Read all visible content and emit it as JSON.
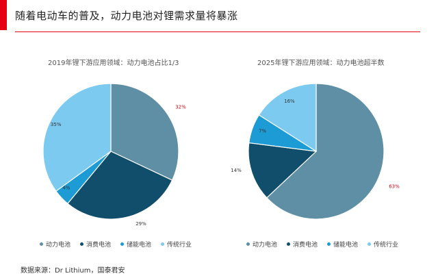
{
  "header": {
    "title": "随着电动车的普及，动力电池对锂需求量将暴涨",
    "accent_color": "#e50012"
  },
  "chart_data": [
    {
      "type": "pie",
      "title": "2019年锂下游应用领域：动力电池占比1/3",
      "slices": [
        {
          "label": "动力电池",
          "value": 32,
          "display": "32%",
          "color": "#5f8fa5",
          "label_color": "#e50012"
        },
        {
          "label": "消费电池",
          "value": 29,
          "display": "29%",
          "color": "#104e6c",
          "label_color": "#333333"
        },
        {
          "label": "储能电池",
          "value": 4,
          "display": "4%",
          "color": "#1c9bd4",
          "label_color": "#333333"
        },
        {
          "label": "传统行业",
          "value": 35,
          "display": "35%",
          "color": "#7dcaf0",
          "label_color": "#333333"
        }
      ],
      "legend_position": "bottom"
    },
    {
      "type": "pie",
      "title": "2025年锂下游应用领域：动力电池超半数",
      "slices": [
        {
          "label": "动力电池",
          "value": 63,
          "display": "63%",
          "color": "#5f8fa5",
          "label_color": "#e50012"
        },
        {
          "label": "消费电池",
          "value": 14,
          "display": "14%",
          "color": "#104e6c",
          "label_color": "#333333"
        },
        {
          "label": "储能电池",
          "value": 7,
          "display": "7%",
          "color": "#1c9bd4",
          "label_color": "#333333"
        },
        {
          "label": "传统行业",
          "value": 16,
          "display": "16%",
          "color": "#7dcaf0",
          "label_color": "#333333"
        }
      ],
      "legend_position": "bottom"
    }
  ],
  "legend": {
    "items": [
      "动力电池",
      "消费电池",
      "储能电池",
      "传统行业"
    ],
    "colors": [
      "#5f8fa5",
      "#104e6c",
      "#1c9bd4",
      "#7dcaf0"
    ]
  },
  "footer": {
    "source": "数据来源：Dr Lithium，国泰君安"
  }
}
